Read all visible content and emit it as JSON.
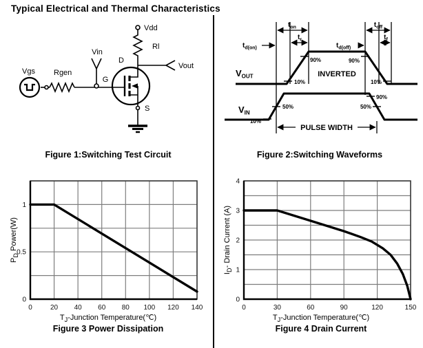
{
  "page": {
    "title": "Typical Electrical and Thermal Characteristics"
  },
  "figure1": {
    "caption": "Figure 1:Switching Test Circuit",
    "labels": {
      "vgs": "Vgs",
      "rgen": "Rgen",
      "vin": "Vin",
      "g": "G",
      "d": "D",
      "s": "S",
      "vdd": "Vdd",
      "rl": "Rl",
      "vout": "Vout"
    }
  },
  "figure2": {
    "caption": "Figure 2:Switching Waveforms",
    "labels": {
      "t": "t",
      "ton_sub": "on",
      "tr_sub": "r",
      "tdon_sub": "d(on)",
      "toff_sub": "off",
      "tf_sub": "f",
      "tdoff_sub": "d(off)",
      "v": "V",
      "vout_sub": "OUT",
      "vin_sub": "IN",
      "inverted": "INVERTED",
      "pulse_width": "PULSE WIDTH",
      "p90": "90%",
      "p10": "10%",
      "p50": "50%"
    }
  },
  "chart_data": [
    {
      "type": "line",
      "title": "Figure 3 Power Dissipation",
      "xlabel_parts": {
        "main": "T",
        "sub": "J",
        "rest": "-Junction Temperature(℃)"
      },
      "ylabel_parts": {
        "main": "P",
        "sub": "D",
        "rest": "  Power(W)"
      },
      "xlim": [
        0,
        140
      ],
      "ylim": [
        0,
        1.25
      ],
      "x_ticks": [
        0,
        20,
        40,
        60,
        80,
        100,
        120,
        140
      ],
      "y_grid_step": 0.25,
      "y_ticks": [
        {
          "v": 0,
          "label": "0"
        },
        {
          "v": 0.5,
          "label": "0.5"
        },
        {
          "v": 1,
          "label": "1"
        }
      ],
      "grid": true,
      "series": [
        {
          "name": "power-derating",
          "points": [
            [
              0,
              1
            ],
            [
              20,
              1
            ],
            [
              140,
              0.08
            ]
          ]
        }
      ]
    },
    {
      "type": "line",
      "title": "Figure 4 Drain Current",
      "xlabel_parts": {
        "main": "T",
        "sub": "J",
        "rest": "-Junction Temperature(℃)"
      },
      "ylabel_parts": {
        "main": "I",
        "sub": "D",
        "rest": "- Drain Current (A)"
      },
      "xlim": [
        0,
        150
      ],
      "ylim": [
        0,
        4
      ],
      "x_ticks": [
        0,
        30,
        60,
        90,
        120,
        150
      ],
      "y_grid_step": 0.5,
      "y_ticks": [
        {
          "v": 0,
          "label": "0"
        },
        {
          "v": 1,
          "label": "1"
        },
        {
          "v": 2,
          "label": "2"
        },
        {
          "v": 3,
          "label": "3"
        },
        {
          "v": 4,
          "label": "4"
        }
      ],
      "grid": true,
      "series": [
        {
          "name": "drain-current-derating",
          "points": [
            [
              0,
              3
            ],
            [
              30,
              3
            ],
            [
              60,
              2.65
            ],
            [
              90,
              2.3
            ],
            [
              105,
              2.1
            ],
            [
              115,
              1.95
            ],
            [
              125,
              1.72
            ],
            [
              132,
              1.5
            ],
            [
              138,
              1.2
            ],
            [
              143,
              0.85
            ],
            [
              147,
              0.45
            ],
            [
              150,
              0
            ]
          ]
        }
      ]
    }
  ]
}
